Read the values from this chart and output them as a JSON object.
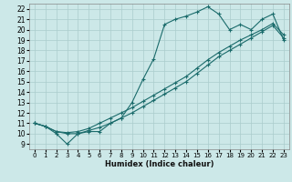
{
  "xlabel": "Humidex (Indice chaleur)",
  "bg_color": "#cce8e8",
  "grid_color": "#aacccc",
  "line_color": "#1a6b6b",
  "xlim": [
    -0.5,
    23.5
  ],
  "ylim": [
    8.5,
    22.5
  ],
  "xticks": [
    0,
    1,
    2,
    3,
    4,
    5,
    6,
    7,
    8,
    9,
    10,
    11,
    12,
    13,
    14,
    15,
    16,
    17,
    18,
    19,
    20,
    21,
    22,
    23
  ],
  "yticks": [
    9,
    10,
    11,
    12,
    13,
    14,
    15,
    16,
    17,
    18,
    19,
    20,
    21,
    22
  ],
  "line1_x": [
    0,
    1,
    2,
    3,
    4,
    5,
    6,
    7,
    8,
    9,
    10,
    11,
    12,
    13,
    14,
    15,
    16,
    17,
    18,
    19,
    20,
    21,
    22,
    23
  ],
  "line1_y": [
    11.0,
    10.7,
    10.0,
    9.0,
    10.0,
    10.2,
    10.2,
    11.0,
    11.5,
    13.0,
    15.2,
    17.2,
    20.5,
    21.0,
    21.3,
    21.7,
    22.2,
    21.5,
    20.0,
    20.5,
    20.0,
    21.0,
    21.5,
    19.0
  ],
  "line2_x": [
    0,
    1,
    2,
    3,
    4,
    5,
    6,
    7,
    8,
    9,
    10,
    11,
    12,
    13,
    14,
    15,
    16,
    17,
    18,
    19,
    20,
    21,
    22,
    23
  ],
  "line2_y": [
    11.0,
    10.7,
    10.2,
    10.0,
    10.0,
    10.3,
    10.6,
    11.0,
    11.5,
    12.0,
    12.6,
    13.2,
    13.8,
    14.4,
    15.0,
    15.8,
    16.6,
    17.4,
    18.0,
    18.6,
    19.2,
    19.8,
    20.4,
    19.2
  ],
  "line3_x": [
    0,
    1,
    2,
    3,
    4,
    5,
    6,
    7,
    8,
    9,
    10,
    11,
    12,
    13,
    14,
    15,
    16,
    17,
    18,
    19,
    20,
    21,
    22,
    23
  ],
  "line3_y": [
    11.0,
    10.7,
    10.2,
    10.1,
    10.2,
    10.5,
    11.0,
    11.5,
    12.0,
    12.5,
    13.1,
    13.7,
    14.3,
    14.9,
    15.5,
    16.3,
    17.1,
    17.8,
    18.4,
    19.0,
    19.5,
    20.0,
    20.6,
    19.5
  ]
}
